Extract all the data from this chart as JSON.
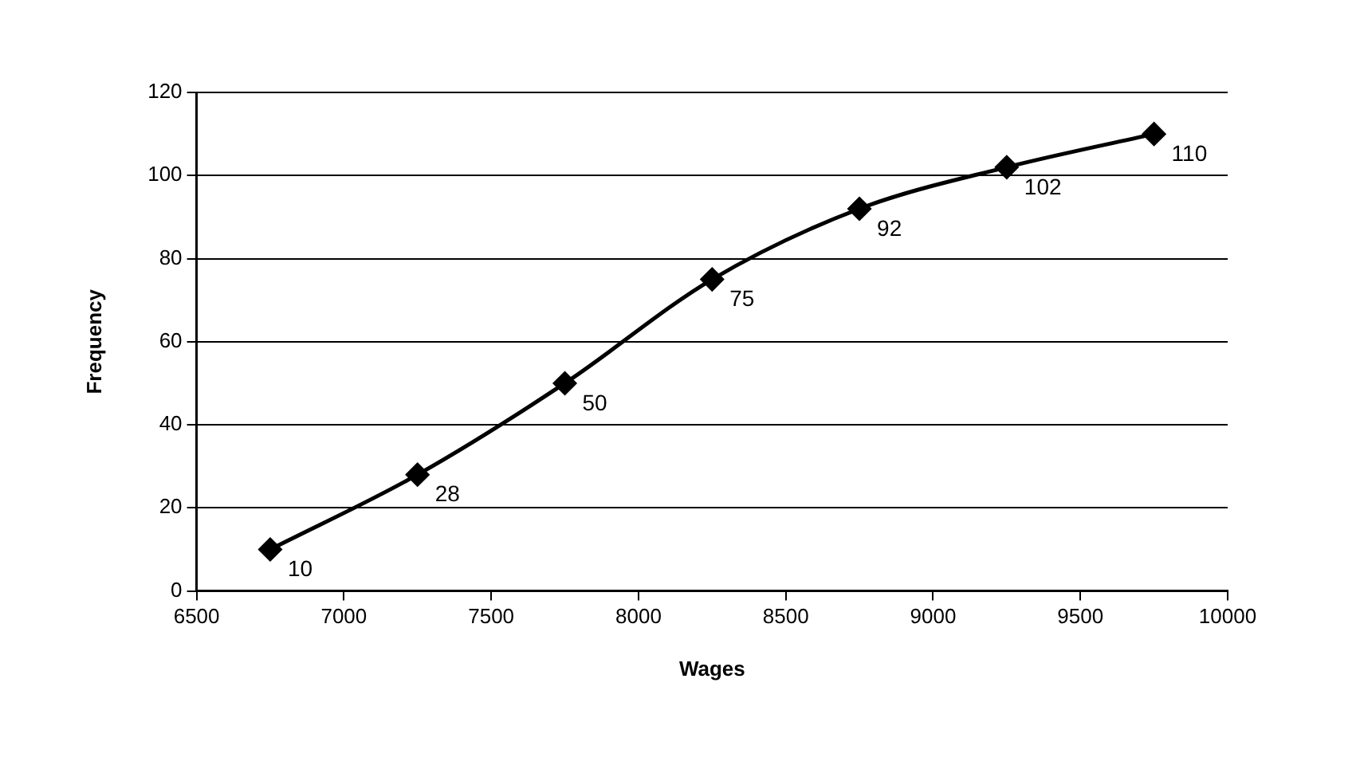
{
  "chart_data": {
    "type": "line",
    "xlabel": "Wages",
    "ylabel": "Frequency",
    "x": [
      6750,
      7250,
      7750,
      8250,
      8750,
      9250,
      9750
    ],
    "series": [
      {
        "color": "#000000",
        "values": [
          10,
          28,
          50,
          75,
          92,
          102,
          110
        ]
      }
    ],
    "xlim": [
      6500,
      10000
    ],
    "xticks": [
      6500,
      7000,
      7500,
      8000,
      8500,
      9000,
      9500,
      10000
    ],
    "ylim": [
      0,
      120
    ],
    "yticks": [
      0,
      20,
      40,
      60,
      80,
      100,
      120
    ],
    "grid": "y",
    "legend": false,
    "marker": "diamond",
    "line_style": "solid",
    "data_labels": true
  }
}
